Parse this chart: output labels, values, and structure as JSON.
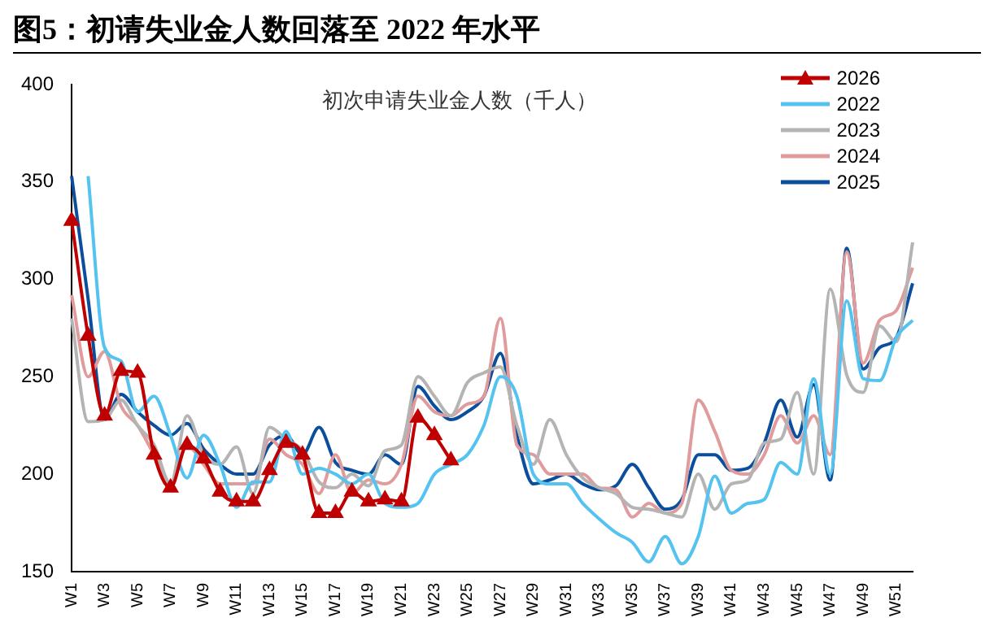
{
  "chart_data": {
    "type": "line",
    "title": "图5：初请失业金人数回落至 2022 年水平",
    "subtitle": "初次申请失业金人数（千人）",
    "categories": [
      "W1",
      null,
      "W3",
      null,
      "W5",
      null,
      "W7",
      null,
      "W9",
      null,
      "W11",
      null,
      "W13",
      null,
      "W15",
      null,
      "W17",
      null,
      "W19",
      null,
      "W21",
      null,
      "W23",
      null,
      "W25",
      null,
      "W27",
      null,
      "W29",
      null,
      "W31",
      null,
      "W33",
      null,
      "W35",
      null,
      "W37",
      null,
      "W39",
      null,
      "W41",
      null,
      "W43",
      null,
      "W45",
      null,
      "W47",
      null,
      "W49",
      null,
      "W51",
      null
    ],
    "ylim": [
      150,
      400
    ],
    "yticks": [
      150,
      200,
      250,
      300,
      350,
      400
    ],
    "grid": false,
    "legend": "top right",
    "line_style": "solid",
    "series": [
      {
        "name": "2026",
        "color": "#c00000",
        "marker": "triangle",
        "values": [
          330,
          271,
          230,
          253,
          252,
          210,
          193,
          215,
          208,
          191,
          186,
          186,
          202,
          216,
          210,
          180,
          180,
          191,
          186,
          187,
          186,
          229,
          220,
          207,
          null,
          null,
          null,
          null,
          null,
          null,
          null,
          null,
          null,
          null,
          null,
          null,
          null,
          null,
          null,
          null,
          null,
          null,
          null,
          null,
          null,
          null,
          null,
          null,
          null,
          null,
          null,
          null
        ]
      },
      {
        "name": "2022",
        "color": "#55c3f0",
        "marker": "none",
        "values": [
          null,
          353,
          265,
          258,
          232,
          240,
          220,
          198,
          220,
          205,
          183,
          196,
          196,
          222,
          200,
          203,
          200,
          195,
          200,
          185,
          183,
          185,
          200,
          205,
          210,
          225,
          250,
          240,
          200,
          195,
          195,
          185,
          177,
          170,
          165,
          155,
          168,
          154,
          168,
          199,
          180,
          185,
          187,
          206,
          200,
          249,
          200,
          289,
          249,
          248,
          270,
          279
        ]
      },
      {
        "name": "2023",
        "color": "#b4b4b4",
        "marker": "none",
        "values": [
          280,
          227,
          228,
          238,
          225,
          215,
          195,
          230,
          210,
          205,
          214,
          190,
          224,
          218,
          212,
          196,
          193,
          200,
          194,
          212,
          215,
          250,
          240,
          230,
          247,
          252,
          255,
          225,
          205,
          228,
          210,
          198,
          193,
          190,
          183,
          182,
          180,
          178,
          200,
          182,
          195,
          197,
          216,
          218,
          242,
          200,
          295,
          251,
          242,
          276,
          268,
          319
        ]
      },
      {
        "name": "2024",
        "color": "#e09c9c",
        "marker": "none",
        "values": [
          292,
          250,
          263,
          235,
          225,
          210,
          195,
          215,
          205,
          195,
          195,
          195,
          218,
          210,
          205,
          190,
          210,
          190,
          197,
          195,
          205,
          240,
          232,
          230,
          236,
          240,
          280,
          215,
          210,
          200,
          200,
          200,
          193,
          192,
          178,
          185,
          180,
          185,
          238,
          222,
          202,
          200,
          210,
          230,
          216,
          230,
          210,
          314,
          257,
          279,
          284,
          306
        ]
      },
      {
        "name": "2025",
        "color": "#0b4f9c",
        "marker": "none",
        "values": [
          353,
          290,
          228,
          241,
          232,
          225,
          220,
          226,
          213,
          205,
          200,
          200,
          215,
          220,
          210,
          224,
          206,
          202,
          200,
          210,
          205,
          245,
          235,
          228,
          232,
          240,
          262,
          220,
          195,
          197,
          200,
          195,
          192,
          194,
          205,
          193,
          182,
          187,
          210,
          210,
          202,
          203,
          216,
          238,
          219,
          246,
          197,
          316,
          254,
          265,
          270,
          298
        ]
      }
    ]
  }
}
